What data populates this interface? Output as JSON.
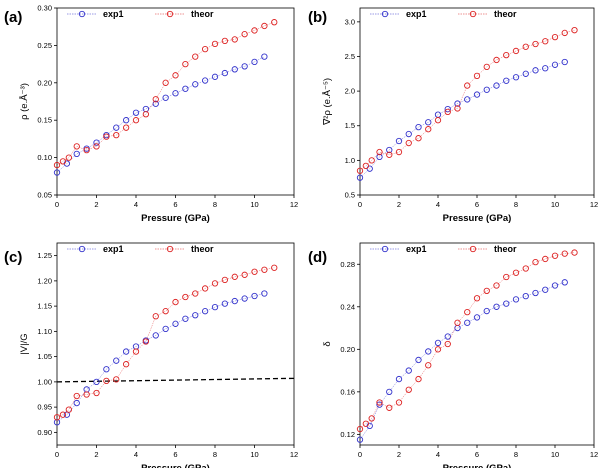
{
  "chart_data": [
    {
      "panel": "(a)",
      "type": "scatter",
      "xlabel": "Pressure (GPa)",
      "ylabel": "ρ (e.Å⁻³)",
      "xlim": [
        0,
        12
      ],
      "ylim": [
        0.05,
        0.3
      ],
      "xticks": [
        0,
        2,
        4,
        6,
        8,
        10,
        12
      ],
      "yticks": [
        0.05,
        0.1,
        0.15,
        0.2,
        0.25,
        0.3
      ],
      "ytick_labels": [
        "0.05",
        "0.10",
        "0.15",
        "0.20",
        "0.25",
        "0.30"
      ],
      "legend_position": "top",
      "series": [
        {
          "name": "exp1",
          "color": "#3333cc",
          "x": [
            0.0,
            0.5,
            1.0,
            1.5,
            2.0,
            2.5,
            3.0,
            3.5,
            4.0,
            4.5,
            5.0,
            5.5,
            6.0,
            6.5,
            7.0,
            7.5,
            8.0,
            8.5,
            9.0,
            9.5,
            10.0,
            10.5
          ],
          "y": [
            0.08,
            0.092,
            0.105,
            0.112,
            0.12,
            0.13,
            0.14,
            0.15,
            0.16,
            0.165,
            0.172,
            0.18,
            0.186,
            0.192,
            0.198,
            0.203,
            0.208,
            0.213,
            0.218,
            0.222,
            0.228,
            0.235
          ]
        },
        {
          "name": "theor",
          "color": "#dd2222",
          "x": [
            0.0,
            0.3,
            0.6,
            1.0,
            1.5,
            2.0,
            2.5,
            3.0,
            3.5,
            4.0,
            4.5,
            5.0,
            5.5,
            6.0,
            6.5,
            7.0,
            7.5,
            8.0,
            8.5,
            9.0,
            9.5,
            10.0,
            10.5,
            11.0
          ],
          "y": [
            0.09,
            0.095,
            0.1,
            0.115,
            0.11,
            0.115,
            0.128,
            0.13,
            0.14,
            0.15,
            0.158,
            0.178,
            0.2,
            0.21,
            0.225,
            0.235,
            0.245,
            0.252,
            0.256,
            0.258,
            0.265,
            0.27,
            0.276,
            0.281
          ]
        }
      ]
    },
    {
      "panel": "(b)",
      "type": "scatter",
      "xlabel": "Pressure (GPa)",
      "ylabel": "∇²ρ (e.Å⁻⁵)",
      "xlim": [
        0,
        12
      ],
      "ylim": [
        0.5,
        3.2
      ],
      "xticks": [
        0,
        2,
        4,
        6,
        8,
        10,
        12
      ],
      "yticks": [
        0.5,
        1.0,
        1.5,
        2.0,
        2.5,
        3.0
      ],
      "ytick_labels": [
        "0.5",
        "1.0",
        "1.5",
        "2.0",
        "2.5",
        "3.0"
      ],
      "legend_position": "top",
      "series": [
        {
          "name": "exp1",
          "color": "#3333cc",
          "x": [
            0.0,
            0.5,
            1.0,
            1.5,
            2.0,
            2.5,
            3.0,
            3.5,
            4.0,
            4.5,
            5.0,
            5.5,
            6.0,
            6.5,
            7.0,
            7.5,
            8.0,
            8.5,
            9.0,
            9.5,
            10.0,
            10.5
          ],
          "y": [
            0.75,
            0.88,
            1.05,
            1.15,
            1.28,
            1.38,
            1.48,
            1.55,
            1.66,
            1.74,
            1.82,
            1.88,
            1.95,
            2.02,
            2.08,
            2.15,
            2.2,
            2.25,
            2.3,
            2.33,
            2.38,
            2.42
          ]
        },
        {
          "name": "theor",
          "color": "#dd2222",
          "x": [
            0.0,
            0.3,
            0.6,
            1.0,
            1.5,
            2.0,
            2.5,
            3.0,
            3.5,
            4.0,
            4.5,
            5.0,
            5.5,
            6.0,
            6.5,
            7.0,
            7.5,
            8.0,
            8.5,
            9.0,
            9.5,
            10.0,
            10.5,
            11.0
          ],
          "y": [
            0.85,
            0.92,
            1.0,
            1.12,
            1.08,
            1.12,
            1.25,
            1.32,
            1.45,
            1.58,
            1.7,
            1.75,
            2.08,
            2.22,
            2.35,
            2.45,
            2.52,
            2.58,
            2.64,
            2.68,
            2.72,
            2.78,
            2.84,
            2.88
          ]
        }
      ]
    },
    {
      "panel": "(c)",
      "type": "scatter",
      "xlabel": "Pressure (GPa)",
      "ylabel": "|V|/G",
      "xlim": [
        0,
        12
      ],
      "ylim": [
        0.875,
        1.275
      ],
      "xticks": [
        0,
        2,
        4,
        6,
        8,
        10,
        12
      ],
      "yticks": [
        0.9,
        0.95,
        1.0,
        1.05,
        1.1,
        1.15,
        1.2,
        1.25
      ],
      "ytick_labels": [
        "0.90",
        "0.95",
        "1.00",
        "1.05",
        "1.10",
        "1.15",
        "1.20",
        "1.25"
      ],
      "legend_position": "top",
      "reference_line": {
        "x": [
          0,
          12
        ],
        "y": [
          1.0,
          1.007
        ],
        "style": "dashed"
      },
      "series": [
        {
          "name": "exp1",
          "color": "#3333cc",
          "x": [
            0.0,
            0.5,
            1.0,
            1.5,
            2.0,
            2.5,
            3.0,
            3.5,
            4.0,
            4.5,
            5.0,
            5.5,
            6.0,
            6.5,
            7.0,
            7.5,
            8.0,
            8.5,
            9.0,
            9.5,
            10.0,
            10.5
          ],
          "y": [
            0.92,
            0.935,
            0.958,
            0.985,
            1.0,
            1.025,
            1.042,
            1.06,
            1.07,
            1.082,
            1.092,
            1.105,
            1.115,
            1.125,
            1.132,
            1.14,
            1.148,
            1.155,
            1.16,
            1.165,
            1.17,
            1.175
          ]
        },
        {
          "name": "theor",
          "color": "#dd2222",
          "x": [
            0.0,
            0.3,
            0.6,
            1.0,
            1.5,
            2.0,
            2.5,
            3.0,
            3.5,
            4.0,
            4.5,
            5.0,
            5.5,
            6.0,
            6.5,
            7.0,
            7.5,
            8.0,
            8.5,
            9.0,
            9.5,
            10.0,
            10.5,
            11.0
          ],
          "y": [
            0.93,
            0.935,
            0.945,
            0.972,
            0.975,
            0.978,
            1.002,
            1.005,
            1.035,
            1.06,
            1.08,
            1.13,
            1.14,
            1.158,
            1.168,
            1.175,
            1.185,
            1.195,
            1.202,
            1.208,
            1.212,
            1.218,
            1.222,
            1.226
          ]
        }
      ]
    },
    {
      "panel": "(d)",
      "type": "scatter",
      "xlabel": "Pressure (GPa)",
      "ylabel": "δ",
      "xlim": [
        0,
        12
      ],
      "ylim": [
        0.11,
        0.3
      ],
      "xticks": [
        0,
        2,
        4,
        6,
        8,
        10,
        12
      ],
      "yticks": [
        0.12,
        0.16,
        0.2,
        0.24,
        0.28
      ],
      "ytick_labels": [
        "0.12",
        "0.16",
        "0.20",
        "0.24",
        "0.28"
      ],
      "legend_position": "top",
      "series": [
        {
          "name": "exp1",
          "color": "#3333cc",
          "x": [
            0.0,
            0.5,
            1.0,
            1.5,
            2.0,
            2.5,
            3.0,
            3.5,
            4.0,
            4.5,
            5.0,
            5.5,
            6.0,
            6.5,
            7.0,
            7.5,
            8.0,
            8.5,
            9.0,
            9.5,
            10.0,
            10.5
          ],
          "y": [
            0.115,
            0.128,
            0.148,
            0.16,
            0.172,
            0.18,
            0.19,
            0.198,
            0.206,
            0.212,
            0.22,
            0.225,
            0.23,
            0.236,
            0.24,
            0.243,
            0.247,
            0.25,
            0.253,
            0.256,
            0.26,
            0.263
          ]
        },
        {
          "name": "theor",
          "color": "#dd2222",
          "x": [
            0.0,
            0.3,
            0.6,
            1.0,
            1.5,
            2.0,
            2.5,
            3.0,
            3.5,
            4.0,
            4.5,
            5.0,
            5.5,
            6.0,
            6.5,
            7.0,
            7.5,
            8.0,
            8.5,
            9.0,
            9.5,
            10.0,
            10.5,
            11.0
          ],
          "y": [
            0.125,
            0.13,
            0.135,
            0.15,
            0.145,
            0.15,
            0.162,
            0.172,
            0.185,
            0.2,
            0.205,
            0.225,
            0.235,
            0.248,
            0.255,
            0.26,
            0.268,
            0.272,
            0.276,
            0.282,
            0.285,
            0.288,
            0.29,
            0.291
          ]
        }
      ]
    }
  ]
}
